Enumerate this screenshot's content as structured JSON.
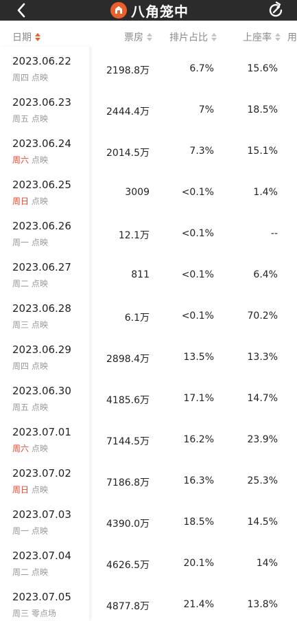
{
  "app": {
    "title": "八角笼中"
  },
  "header": {
    "date": "日期",
    "box_office": "票房",
    "screening_share": "排片占比",
    "seat_rate": "上座率",
    "extra": "用"
  },
  "icons": {
    "back": "back-icon",
    "share": "share-icon",
    "logo": "movie-logo-icon"
  },
  "colors": {
    "accent": "#e8602c",
    "weekend": "#e8452c",
    "bar": "#2b2b2b"
  },
  "rows": [
    {
      "date": "2023.06.22",
      "weekday": "周四",
      "weekend": false,
      "tag": "点映",
      "box": "2198.8万",
      "share": "6.7%",
      "seat": "15.6%"
    },
    {
      "date": "2023.06.23",
      "weekday": "周五",
      "weekend": false,
      "tag": "点映",
      "box": "2444.4万",
      "share": "7%",
      "seat": "18.5%"
    },
    {
      "date": "2023.06.24",
      "weekday": "周六",
      "weekend": true,
      "tag": "点映",
      "box": "2014.5万",
      "share": "7.3%",
      "seat": "15.1%"
    },
    {
      "date": "2023.06.25",
      "weekday": "周日",
      "weekend": true,
      "tag": "点映",
      "box": "3009",
      "share": "<0.1%",
      "seat": "1.4%"
    },
    {
      "date": "2023.06.26",
      "weekday": "周一",
      "weekend": false,
      "tag": "点映",
      "box": "12.1万",
      "share": "<0.1%",
      "seat": "--"
    },
    {
      "date": "2023.06.27",
      "weekday": "周二",
      "weekend": false,
      "tag": "点映",
      "box": "811",
      "share": "<0.1%",
      "seat": "6.4%"
    },
    {
      "date": "2023.06.28",
      "weekday": "周三",
      "weekend": false,
      "tag": "点映",
      "box": "6.1万",
      "share": "<0.1%",
      "seat": "70.2%"
    },
    {
      "date": "2023.06.29",
      "weekday": "周四",
      "weekend": false,
      "tag": "点映",
      "box": "2898.4万",
      "share": "13.5%",
      "seat": "13.3%"
    },
    {
      "date": "2023.06.30",
      "weekday": "周五",
      "weekend": false,
      "tag": "点映",
      "box": "4185.6万",
      "share": "17.1%",
      "seat": "14.7%"
    },
    {
      "date": "2023.07.01",
      "weekday": "周六",
      "weekend": true,
      "tag": "点映",
      "box": "7144.5万",
      "share": "16.2%",
      "seat": "23.9%"
    },
    {
      "date": "2023.07.02",
      "weekday": "周日",
      "weekend": true,
      "tag": "点映",
      "box": "7186.8万",
      "share": "16.3%",
      "seat": "25.3%"
    },
    {
      "date": "2023.07.03",
      "weekday": "周一",
      "weekend": false,
      "tag": "点映",
      "box": "4390.0万",
      "share": "18.5%",
      "seat": "14.5%"
    },
    {
      "date": "2023.07.04",
      "weekday": "周二",
      "weekend": false,
      "tag": "点映",
      "box": "4626.5万",
      "share": "20.1%",
      "seat": "14%"
    },
    {
      "date": "2023.07.05",
      "weekday": "周三",
      "weekend": false,
      "tag": "零点场",
      "box": "4877.8万",
      "share": "21.4%",
      "seat": "13.8%"
    }
  ]
}
